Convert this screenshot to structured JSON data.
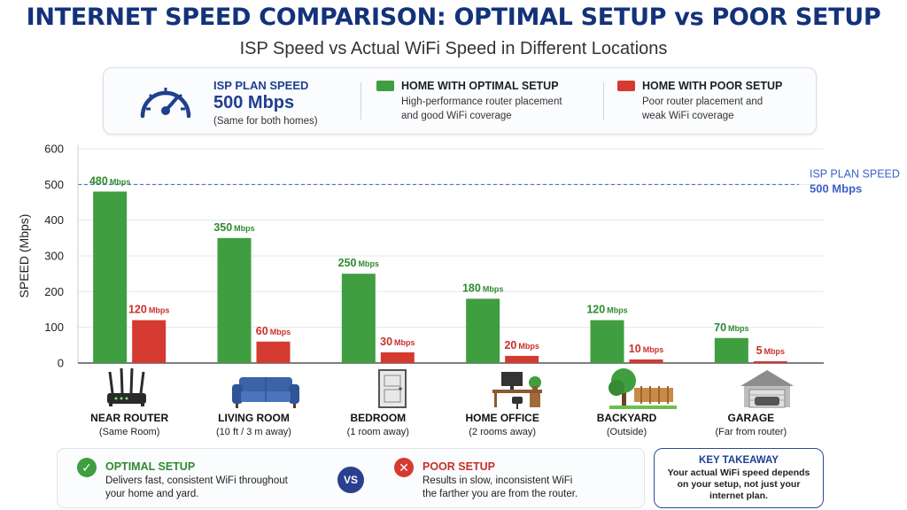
{
  "title": "INTERNET SPEED COMPARISON: OPTIMAL SETUP vs POOR SETUP",
  "subtitle": "ISP Speed vs Actual WiFi Speed in Different Locations",
  "legend": {
    "isp_title": "ISP PLAN SPEED",
    "isp_value": "500 Mbps",
    "isp_note": "(Same for both homes)",
    "optimal_title": "HOME WITH OPTIMAL SETUP",
    "optimal_desc_1": "High-performance router placement",
    "optimal_desc_2": "and good WiFi coverage",
    "poor_title": "HOME WITH POOR SETUP",
    "poor_desc_1": "Poor router placement and",
    "poor_desc_2": "weak WiFi coverage"
  },
  "colors": {
    "optimal": "#3f9e3f",
    "poor": "#d43a30",
    "reference": "#3b62c4",
    "accent": "#1f3f8f"
  },
  "icons": [
    "speedometer-icon",
    "router-icon",
    "sofa-icon",
    "door-icon",
    "desk-icon",
    "tree-fence-icon",
    "garage-icon",
    "check-icon",
    "x-icon"
  ],
  "chart_data": {
    "type": "bar",
    "categories": [
      "NEAR ROUTER",
      "LIVING ROOM",
      "BEDROOM",
      "HOME OFFICE",
      "BACKYARD",
      "GARAGE"
    ],
    "category_notes": [
      "(Same Room)",
      "(10 ft / 3 m away)",
      "(1 room away)",
      "(2 rooms away)",
      "(Outside)",
      "(Far from router)"
    ],
    "series": [
      {
        "name": "HOME WITH OPTIMAL SETUP",
        "values": [
          480,
          350,
          250,
          180,
          120,
          70
        ],
        "labels": [
          "480",
          "350",
          "250",
          "180",
          "120",
          "70"
        ]
      },
      {
        "name": "HOME WITH POOR SETUP",
        "values": [
          120,
          60,
          30,
          20,
          10,
          5
        ],
        "labels": [
          "120",
          "60",
          "30",
          "20",
          "10",
          "5"
        ]
      }
    ],
    "unit": "Mbps",
    "ylabel": "SPEED (Mbps)",
    "xlabel": "",
    "ylim": [
      0,
      600
    ],
    "yticks": [
      0,
      100,
      200,
      300,
      400,
      500,
      600
    ],
    "grid": true,
    "reference_line": {
      "value": 500,
      "label_1": "ISP PLAN SPEED",
      "label_2": "500 Mbps"
    }
  },
  "bottom": {
    "optimal_title": "OPTIMAL SETUP",
    "optimal_text_1": "Delivers fast, consistent WiFi throughout",
    "optimal_text_2": "your home and yard.",
    "vs": "VS",
    "poor_title": "POOR SETUP",
    "poor_text_1": "Results in slow, inconsistent WiFi",
    "poor_text_2": "the farther you are from the router.",
    "check_glyph": "✓",
    "x_glyph": "✕"
  },
  "takeaway": {
    "title": "KEY TAKEAWAY",
    "text": "Your actual WiFi speed depends on your setup, not just your internet plan."
  }
}
